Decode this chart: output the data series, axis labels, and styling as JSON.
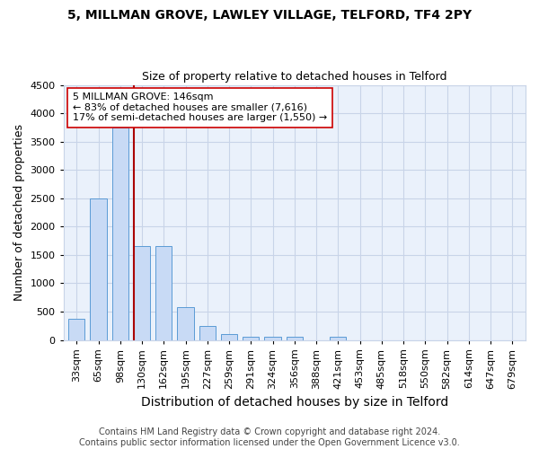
{
  "title": "5, MILLMAN GROVE, LAWLEY VILLAGE, TELFORD, TF4 2PY",
  "subtitle": "Size of property relative to detached houses in Telford",
  "xlabel": "Distribution of detached houses by size in Telford",
  "ylabel": "Number of detached properties",
  "categories": [
    "33sqm",
    "65sqm",
    "98sqm",
    "130sqm",
    "162sqm",
    "195sqm",
    "227sqm",
    "259sqm",
    "291sqm",
    "324sqm",
    "356sqm",
    "388sqm",
    "421sqm",
    "453sqm",
    "485sqm",
    "518sqm",
    "550sqm",
    "582sqm",
    "614sqm",
    "647sqm",
    "679sqm"
  ],
  "values": [
    380,
    2500,
    3750,
    1650,
    1650,
    580,
    245,
    110,
    60,
    50,
    50,
    0,
    55,
    0,
    0,
    0,
    0,
    0,
    0,
    0,
    0
  ],
  "bar_color": "#c8daf5",
  "bar_edge_color": "#5b9bd5",
  "background_color": "#eaf1fb",
  "plot_background": "#eaf1fb",
  "grid_color": "#c8d4e8",
  "vline_color": "#aa0000",
  "annotation_text": "5 MILLMAN GROVE: 146sqm\n← 83% of detached houses are smaller (7,616)\n17% of semi-detached houses are larger (1,550) →",
  "annotation_box_color": "white",
  "annotation_box_edge": "#cc0000",
  "ylim": [
    0,
    4500
  ],
  "yticks": [
    0,
    500,
    1000,
    1500,
    2000,
    2500,
    3000,
    3500,
    4000,
    4500
  ],
  "footer": "Contains HM Land Registry data © Crown copyright and database right 2024.\nContains public sector information licensed under the Open Government Licence v3.0.",
  "title_fontsize": 10,
  "subtitle_fontsize": 9,
  "xlabel_fontsize": 10,
  "ylabel_fontsize": 9,
  "tick_fontsize": 8,
  "footer_fontsize": 7,
  "vline_bar_index": 3
}
